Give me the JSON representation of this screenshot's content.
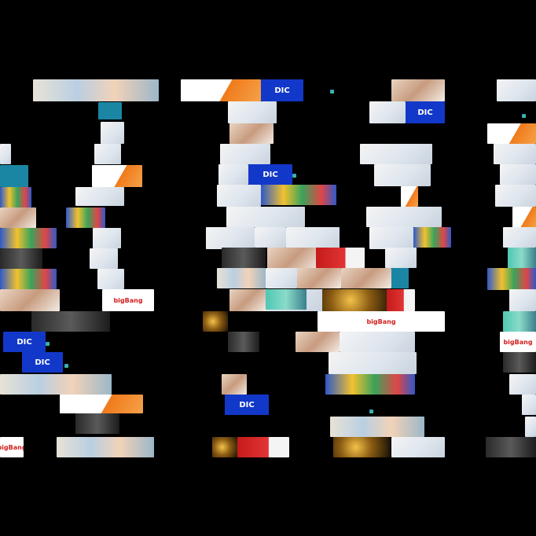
{
  "scene": {
    "background": "#000000",
    "kind": "ad-banner-collage",
    "tile_count": 112,
    "columns": 5
  },
  "palette": {
    "blue_brand": "#1238c9",
    "orange_accent": "#f07a1a",
    "red_accent": "#c41b1b",
    "teal_accent": "#4fc7b4",
    "gold_accent": "#f3c24a"
  },
  "labels": {
    "brand_block": "DIC",
    "ad_banner": "bigBang"
  }
}
